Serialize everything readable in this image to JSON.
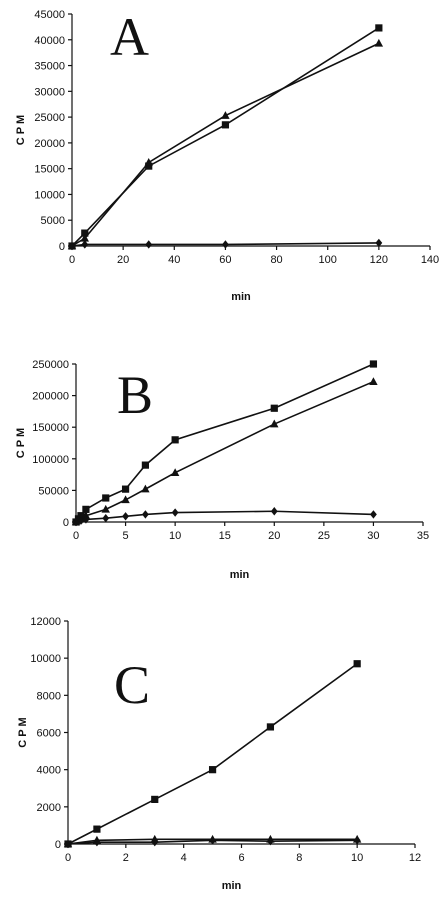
{
  "chart_data": [
    {
      "type": "line",
      "panel_label": "A",
      "xlabel": "min",
      "ylabel": "C P M",
      "xlim": [
        0,
        140
      ],
      "ylim": [
        0,
        45000
      ],
      "xticks": [
        0,
        20,
        40,
        60,
        80,
        100,
        120,
        140
      ],
      "yticks": [
        0,
        5000,
        10000,
        15000,
        20000,
        25000,
        30000,
        35000,
        40000,
        45000
      ],
      "series": [
        {
          "marker": "square",
          "x": [
            0,
            5,
            30,
            60,
            120
          ],
          "y": [
            0,
            2500,
            15500,
            23500,
            42300
          ]
        },
        {
          "marker": "triangle",
          "x": [
            0,
            5,
            30,
            60,
            120
          ],
          "y": [
            0,
            1500,
            16200,
            25300,
            39300
          ]
        },
        {
          "marker": "diamond",
          "x": [
            0,
            5,
            30,
            60,
            120
          ],
          "y": [
            0,
            300,
            300,
            300,
            600
          ]
        }
      ]
    },
    {
      "type": "line",
      "panel_label": "B",
      "xlabel": "min",
      "ylabel": "C P M",
      "xlim": [
        0,
        35
      ],
      "ylim": [
        0,
        250000
      ],
      "xticks": [
        0,
        5,
        10,
        15,
        20,
        25,
        30,
        35
      ],
      "yticks": [
        0,
        50000,
        100000,
        150000,
        200000,
        250000
      ],
      "series": [
        {
          "marker": "square",
          "x": [
            0,
            0.25,
            0.5,
            1,
            3,
            5,
            7,
            10,
            20,
            30
          ],
          "y": [
            0,
            5000,
            10000,
            20000,
            38000,
            52000,
            90000,
            130000,
            180000,
            250000
          ]
        },
        {
          "marker": "triangle",
          "x": [
            0,
            0.25,
            0.5,
            1,
            3,
            5,
            7,
            10,
            20,
            30
          ],
          "y": [
            0,
            3000,
            5000,
            10000,
            20000,
            35000,
            52000,
            78000,
            155000,
            222000
          ]
        },
        {
          "marker": "diamond",
          "x": [
            0,
            0.25,
            0.5,
            1,
            3,
            5,
            7,
            10,
            20,
            30
          ],
          "y": [
            0,
            1000,
            2000,
            4000,
            6000,
            9000,
            12000,
            15000,
            17000,
            12000
          ]
        }
      ]
    },
    {
      "type": "line",
      "panel_label": "C",
      "xlabel": "min",
      "ylabel": "C P M",
      "xlim": [
        0,
        12
      ],
      "ylim": [
        0,
        12000
      ],
      "xticks": [
        0,
        2,
        4,
        6,
        8,
        10,
        12
      ],
      "yticks": [
        0,
        2000,
        4000,
        6000,
        8000,
        10000,
        12000
      ],
      "series": [
        {
          "marker": "square",
          "x": [
            0,
            1,
            3,
            5,
            7,
            10
          ],
          "y": [
            0,
            800,
            2400,
            4000,
            6300,
            9700
          ]
        },
        {
          "marker": "triangle",
          "x": [
            0,
            1,
            3,
            5,
            7,
            10
          ],
          "y": [
            0,
            200,
            250,
            250,
            250,
            250
          ]
        },
        {
          "marker": "diamond",
          "x": [
            0,
            1,
            3,
            5,
            7,
            10
          ],
          "y": [
            0,
            100,
            100,
            200,
            150,
            200
          ]
        }
      ]
    }
  ]
}
